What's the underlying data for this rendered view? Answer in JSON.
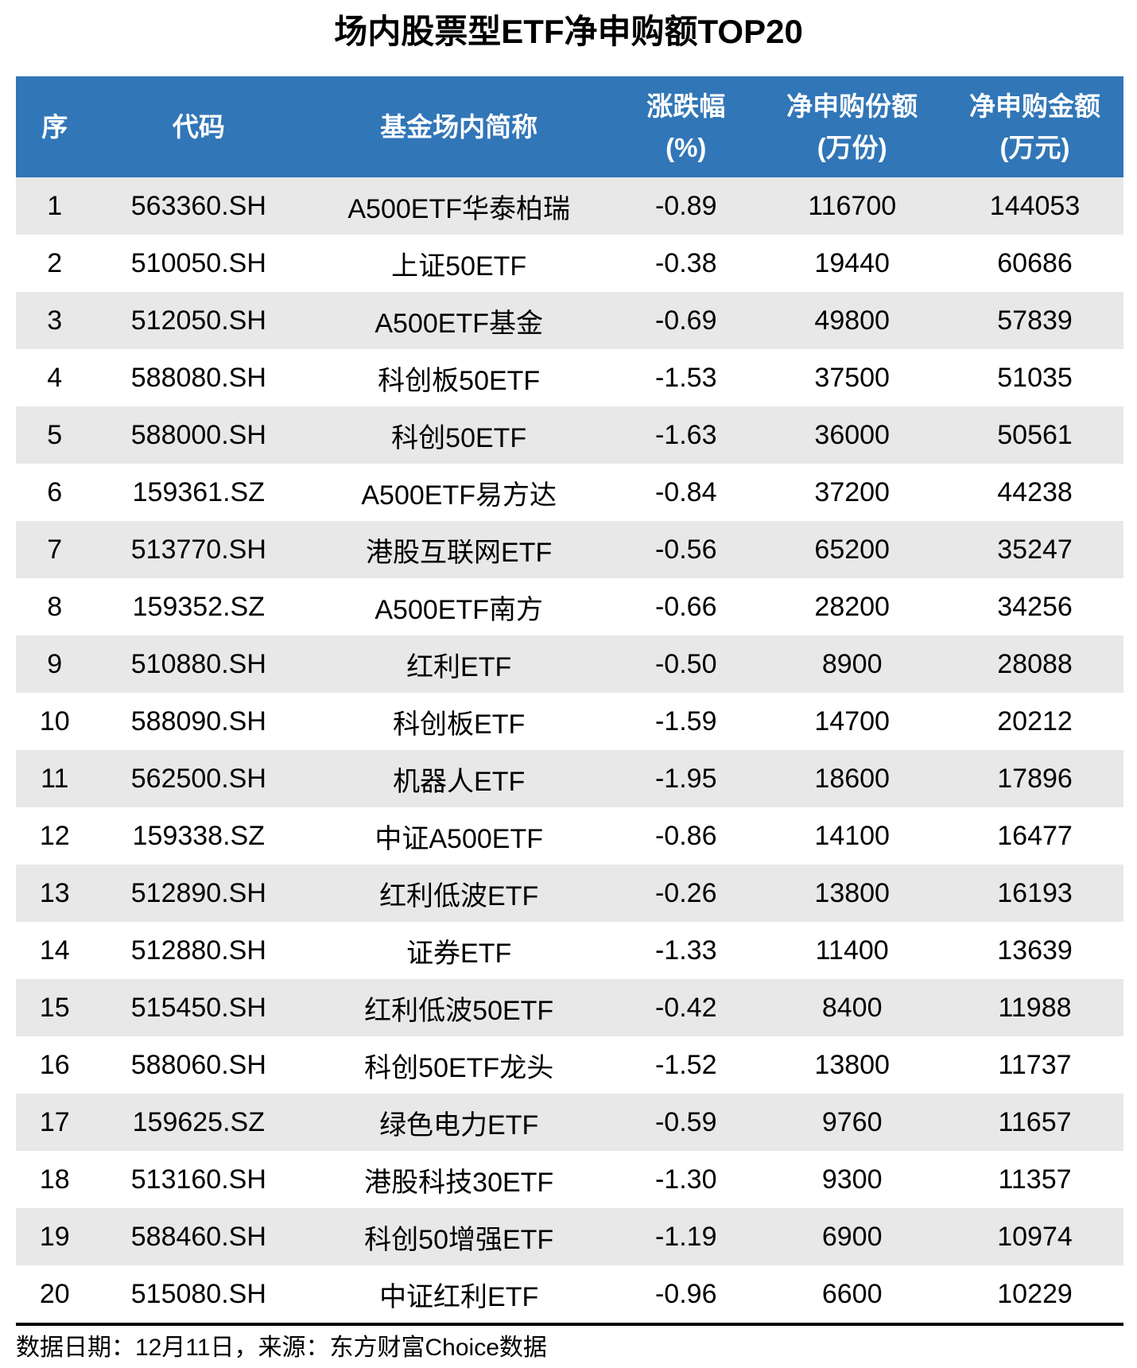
{
  "chart_data": {
    "type": "table",
    "title": "场内股票型ETF净申购额TOP20",
    "columns": [
      {
        "lines": [
          "序"
        ]
      },
      {
        "lines": [
          "代码"
        ]
      },
      {
        "lines": [
          "基金场内简称"
        ]
      },
      {
        "lines": [
          "涨跌幅",
          "(%)"
        ]
      },
      {
        "lines": [
          "净申购份额",
          "(万份)"
        ]
      },
      {
        "lines": [
          "净申购金额",
          "(万元)"
        ]
      }
    ],
    "rows": [
      [
        "1",
        "563360.SH",
        "A500ETF华泰柏瑞",
        "-0.89",
        "116700",
        "144053"
      ],
      [
        "2",
        "510050.SH",
        "上证50ETF",
        "-0.38",
        "19440",
        "60686"
      ],
      [
        "3",
        "512050.SH",
        "A500ETF基金",
        "-0.69",
        "49800",
        "57839"
      ],
      [
        "4",
        "588080.SH",
        "科创板50ETF",
        "-1.53",
        "37500",
        "51035"
      ],
      [
        "5",
        "588000.SH",
        "科创50ETF",
        "-1.63",
        "36000",
        "50561"
      ],
      [
        "6",
        "159361.SZ",
        "A500ETF易方达",
        "-0.84",
        "37200",
        "44238"
      ],
      [
        "7",
        "513770.SH",
        "港股互联网ETF",
        "-0.56",
        "65200",
        "35247"
      ],
      [
        "8",
        "159352.SZ",
        "A500ETF南方",
        "-0.66",
        "28200",
        "34256"
      ],
      [
        "9",
        "510880.SH",
        "红利ETF",
        "-0.50",
        "8900",
        "28088"
      ],
      [
        "10",
        "588090.SH",
        "科创板ETF",
        "-1.59",
        "14700",
        "20212"
      ],
      [
        "11",
        "562500.SH",
        "机器人ETF",
        "-1.95",
        "18600",
        "17896"
      ],
      [
        "12",
        "159338.SZ",
        "中证A500ETF",
        "-0.86",
        "14100",
        "16477"
      ],
      [
        "13",
        "512890.SH",
        "红利低波ETF",
        "-0.26",
        "13800",
        "16193"
      ],
      [
        "14",
        "512880.SH",
        "证券ETF",
        "-1.33",
        "11400",
        "13639"
      ],
      [
        "15",
        "515450.SH",
        "红利低波50ETF",
        "-0.42",
        "8400",
        "11988"
      ],
      [
        "16",
        "588060.SH",
        "科创50ETF龙头",
        "-1.52",
        "13800",
        "11737"
      ],
      [
        "17",
        "159625.SZ",
        "绿色电力ETF",
        "-0.59",
        "9760",
        "11657"
      ],
      [
        "18",
        "513160.SH",
        "港股科技30ETF",
        "-1.30",
        "9300",
        "11357"
      ],
      [
        "19",
        "588460.SH",
        "科创50增强ETF",
        "-1.19",
        "6900",
        "10974"
      ],
      [
        "20",
        "515080.SH",
        "中证红利ETF",
        "-0.96",
        "6600",
        "10229"
      ]
    ],
    "layout": {
      "striped": true,
      "stripe_rows": "odd",
      "header_position": "top",
      "grid": false
    }
  },
  "footer": {
    "source_text": "数据日期：12月11日，来源：东方财富Choice数据"
  },
  "colors": {
    "header_bg": "#3176B7",
    "header_text": "#FFFFFF",
    "row_stripe_bg": "#E8E8E8",
    "row_bg": "#FFFFFF",
    "text": "#000000",
    "divider": "#000000"
  }
}
